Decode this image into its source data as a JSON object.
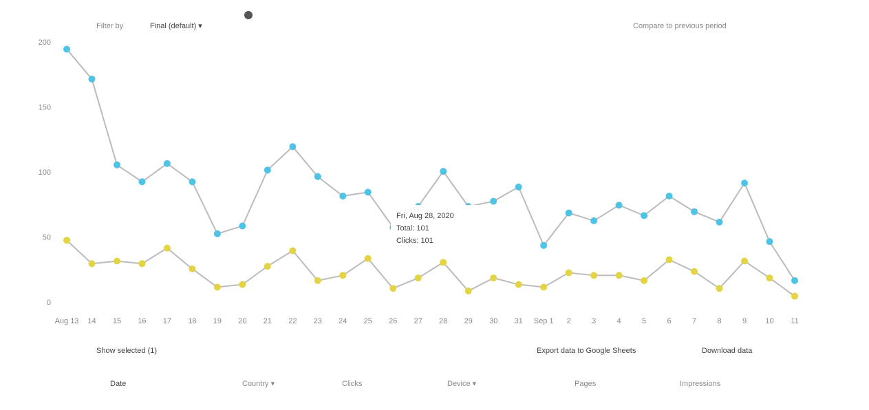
{
  "toolbar": {
    "filter": "Filter by",
    "mode": "Final (default) ▾",
    "compare": "Compare to previous period"
  },
  "chart_data": {
    "type": "line",
    "categories": [
      "Aug 13",
      "14",
      "15",
      "16",
      "17",
      "18",
      "19",
      "20",
      "21",
      "22",
      "23",
      "24",
      "25",
      "26",
      "27",
      "28",
      "29",
      "30",
      "31",
      "Sep 1",
      "2",
      "3",
      "4",
      "5",
      "6",
      "7",
      "8",
      "9",
      "10",
      "11"
    ],
    "series": [
      {
        "name": "Clicks",
        "color": "#4fc3e6",
        "values": [
          195,
          172,
          106,
          93,
          107,
          93,
          53,
          59,
          102,
          120,
          97,
          82,
          85,
          58,
          74,
          101,
          74,
          78,
          89,
          44,
          69,
          63,
          75,
          67,
          82,
          70,
          62,
          92,
          47,
          17
        ]
      },
      {
        "name": "Impressions",
        "color": "#e3d443",
        "values": [
          48,
          30,
          32,
          30,
          42,
          26,
          12,
          14,
          28,
          40,
          17,
          21,
          34,
          11,
          19,
          31,
          9,
          19,
          14,
          12,
          23,
          21,
          21,
          17,
          33,
          24,
          11,
          32,
          19,
          5
        ]
      }
    ],
    "ylim": [
      0,
      200
    ],
    "yticks": [
      0,
      50,
      100,
      150,
      200
    ],
    "grid": false,
    "tooltip": [
      "Fri, Aug 28, 2020",
      "Total: 101",
      "Clicks: 101"
    ]
  },
  "footer": {
    "selected": "Show selected (1)",
    "export": "Export data to Google Sheets",
    "download": "Download data"
  },
  "tabs": [
    "Date",
    "Country ▾",
    "Device ▾",
    "Pages"
  ]
}
